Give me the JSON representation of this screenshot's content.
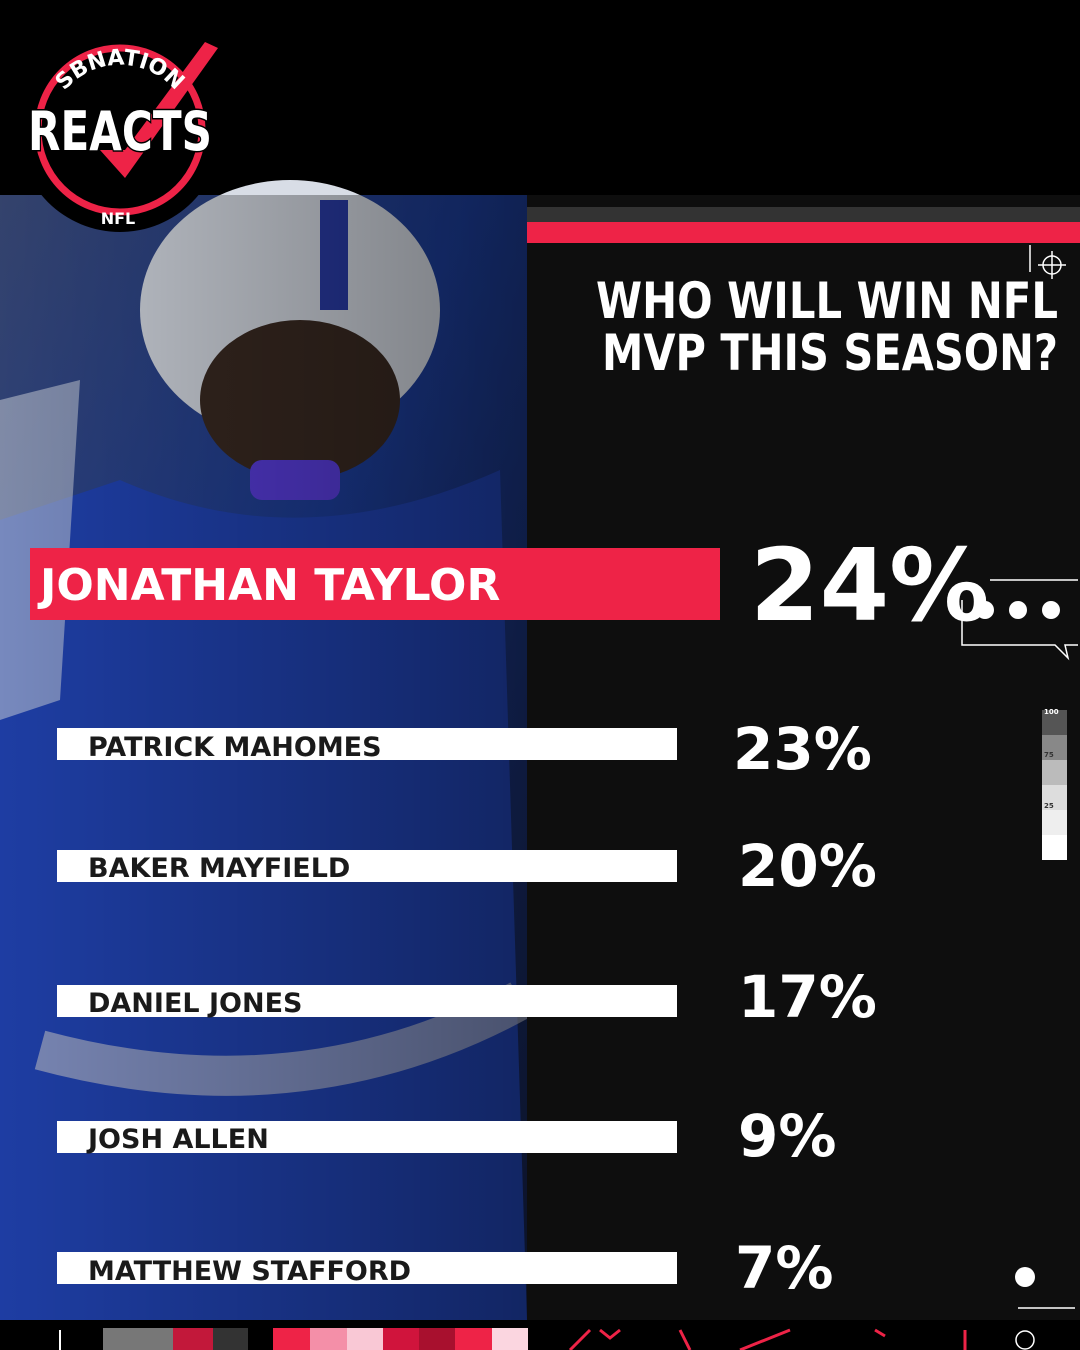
{
  "logo": {
    "top": "SBNATION",
    "main": "REACTS",
    "bottom": "NFL"
  },
  "question": {
    "lines": [
      "WHO WILL WIN NFL",
      "MVP THIS SEASON?"
    ]
  },
  "results": [
    {
      "name": "JONATHAN TAYLOR",
      "value": "24%"
    },
    {
      "name": "PATRICK MAHOMES",
      "value": "23%"
    },
    {
      "name": "BAKER MAYFIELD",
      "value": "20%"
    },
    {
      "name": "DANIEL JONES",
      "value": "17%"
    },
    {
      "name": "JOSH ALLEN",
      "value": "9%"
    },
    {
      "name": "MATTHEW STAFFORD",
      "value": "7%"
    }
  ],
  "scale_labels": [
    "100",
    "75",
    "25"
  ]
}
